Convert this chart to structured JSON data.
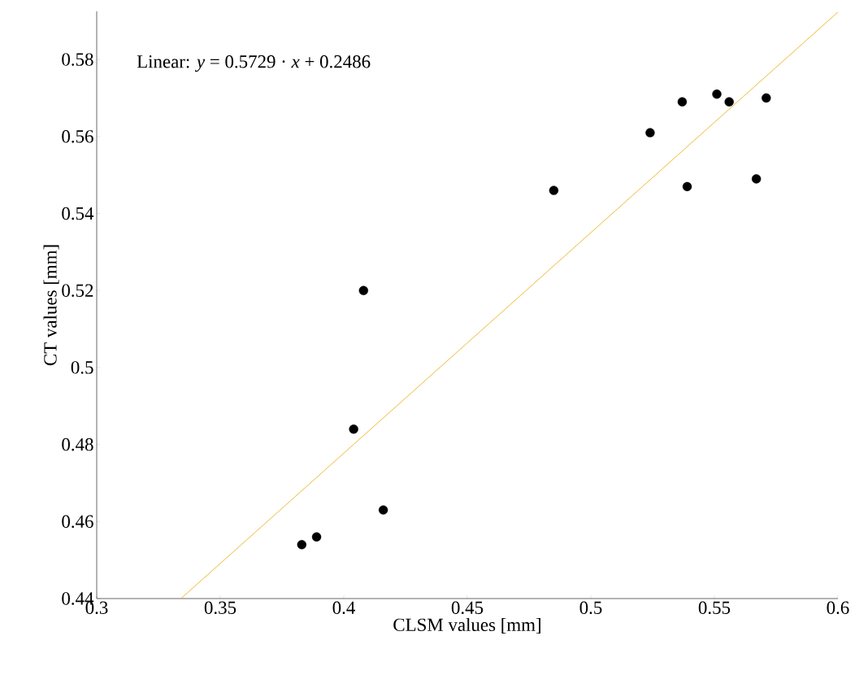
{
  "chart_data": {
    "type": "scatter",
    "xlabel": "CLSM values [mm]",
    "ylabel": "CT values [mm]",
    "xlim": [
      0.3,
      0.6
    ],
    "ylim": [
      0.44,
      0.5925
    ],
    "xticks": [
      0.3,
      0.35,
      0.4,
      0.45,
      0.5,
      0.55,
      0.6
    ],
    "yticks": [
      0.44,
      0.46,
      0.48,
      0.5,
      0.52,
      0.54,
      0.56,
      0.58
    ],
    "grid": false,
    "marker": "circle",
    "annotations": [
      "Linear: *y* = 0.5729 · *x* + 0.2486"
    ],
    "series": [
      {
        "type": "scatter",
        "color": "#000000",
        "x": [
          0.383,
          0.389,
          0.404,
          0.408,
          0.416,
          0.485,
          0.524,
          0.537,
          0.539,
          0.551,
          0.556,
          0.567,
          0.571
        ],
        "values": [
          0.454,
          0.456,
          0.484,
          0.52,
          0.463,
          0.546,
          0.561,
          0.569,
          0.547,
          0.571,
          0.569,
          0.549,
          0.57
        ]
      },
      {
        "type": "line",
        "color": "#edb120",
        "marker": "none",
        "line_style": "solid",
        "x": [
          0.3341,
          0.6
        ],
        "values": [
          0.44,
          0.5923
        ]
      }
    ]
  }
}
